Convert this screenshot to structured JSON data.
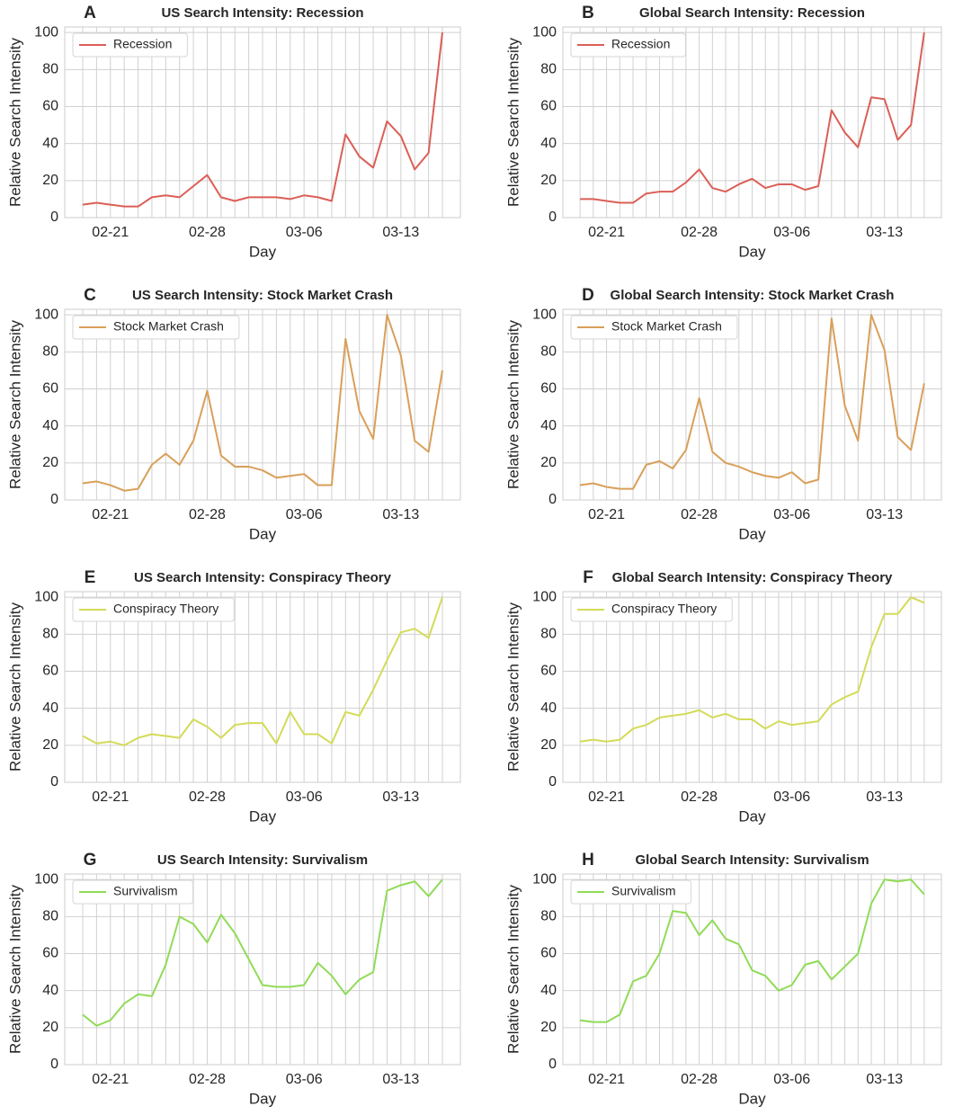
{
  "chart_data": [
    {
      "type": "line",
      "panel": "A",
      "title": "US Search Intensity: Recession",
      "xlabel": "Day",
      "ylabel": "Relative Search Intensity",
      "categories": [
        null,
        null,
        "02-21",
        null,
        null,
        null,
        null,
        null,
        null,
        "02-28",
        null,
        null,
        null,
        null,
        null,
        null,
        "03-06",
        null,
        null,
        null,
        null,
        null,
        null,
        "03-13",
        null,
        null,
        null
      ],
      "series": [
        {
          "name": "Recession",
          "color": "#db5f57",
          "values": [
            7,
            8,
            7,
            6,
            6,
            11,
            12,
            11,
            17,
            23,
            11,
            9,
            11,
            11,
            11,
            10,
            12,
            11,
            9,
            45,
            33,
            27,
            52,
            44,
            26,
            35,
            100
          ]
        }
      ],
      "ylim": [
        0,
        103
      ],
      "yticks": [
        0,
        20,
        40,
        60,
        80,
        100
      ],
      "grid": true,
      "legend": "upper left"
    },
    {
      "type": "line",
      "panel": "B",
      "title": "Global Search Intensity: Recession",
      "xlabel": "Day",
      "ylabel": "Relative Search Intensity",
      "categories": [
        null,
        null,
        "02-21",
        null,
        null,
        null,
        null,
        null,
        null,
        "02-28",
        null,
        null,
        null,
        null,
        null,
        null,
        "03-06",
        null,
        null,
        null,
        null,
        null,
        null,
        "03-13",
        null,
        null,
        null
      ],
      "series": [
        {
          "name": "Recession",
          "color": "#db5f57",
          "values": [
            10,
            10,
            9,
            8,
            8,
            13,
            14,
            14,
            19,
            26,
            16,
            14,
            18,
            21,
            16,
            18,
            18,
            15,
            17,
            58,
            46,
            38,
            65,
            64,
            42,
            50,
            100
          ]
        }
      ],
      "ylim": [
        0,
        103
      ],
      "yticks": [
        0,
        20,
        40,
        60,
        80,
        100
      ],
      "grid": true,
      "legend": "upper left"
    },
    {
      "type": "line",
      "panel": "C",
      "title": "US Search Intensity: Stock Market Crash",
      "xlabel": "Day",
      "ylabel": "Relative Search Intensity",
      "categories": [
        null,
        null,
        "02-21",
        null,
        null,
        null,
        null,
        null,
        null,
        "02-28",
        null,
        null,
        null,
        null,
        null,
        null,
        "03-06",
        null,
        null,
        null,
        null,
        null,
        null,
        "03-13",
        null,
        null,
        null
      ],
      "series": [
        {
          "name": "Stock Market Crash",
          "color": "#d99f5a",
          "values": [
            9,
            10,
            8,
            5,
            6,
            19,
            25,
            19,
            32,
            59,
            24,
            18,
            18,
            16,
            12,
            13,
            14,
            8,
            8,
            87,
            48,
            33,
            100,
            78,
            32,
            26,
            70
          ]
        }
      ],
      "ylim": [
        0,
        103
      ],
      "yticks": [
        0,
        20,
        40,
        60,
        80,
        100
      ],
      "grid": true,
      "legend": "upper left"
    },
    {
      "type": "line",
      "panel": "D",
      "title": "Global Search Intensity: Stock Market Crash",
      "xlabel": "Day",
      "ylabel": "Relative Search Intensity",
      "categories": [
        null,
        null,
        "02-21",
        null,
        null,
        null,
        null,
        null,
        null,
        "02-28",
        null,
        null,
        null,
        null,
        null,
        null,
        "03-06",
        null,
        null,
        null,
        null,
        null,
        null,
        "03-13",
        null,
        null,
        null
      ],
      "series": [
        {
          "name": "Stock Market Crash",
          "color": "#d99f5a",
          "values": [
            8,
            9,
            7,
            6,
            6,
            19,
            21,
            17,
            27,
            55,
            26,
            20,
            18,
            15,
            13,
            12,
            15,
            9,
            11,
            98,
            51,
            32,
            100,
            81,
            34,
            27,
            63
          ]
        }
      ],
      "ylim": [
        0,
        103
      ],
      "yticks": [
        0,
        20,
        40,
        60,
        80,
        100
      ],
      "grid": true,
      "legend": "upper left"
    },
    {
      "type": "line",
      "panel": "E",
      "title": "US Search Intensity: Conspiracy Theory",
      "xlabel": "Day",
      "ylabel": "Relative Search Intensity",
      "categories": [
        null,
        null,
        "02-21",
        null,
        null,
        null,
        null,
        null,
        null,
        "02-28",
        null,
        null,
        null,
        null,
        null,
        null,
        "03-06",
        null,
        null,
        null,
        null,
        null,
        null,
        "03-13",
        null,
        null,
        null
      ],
      "series": [
        {
          "name": "Conspiracy Theory",
          "color": "#d3db57",
          "values": [
            25,
            21,
            22,
            20,
            24,
            26,
            25,
            24,
            34,
            30,
            24,
            31,
            32,
            32,
            21,
            38,
            26,
            26,
            21,
            38,
            36,
            50,
            66,
            81,
            83,
            78,
            100
          ]
        }
      ],
      "ylim": [
        0,
        103
      ],
      "yticks": [
        0,
        20,
        40,
        60,
        80,
        100
      ],
      "grid": true,
      "legend": "upper left"
    },
    {
      "type": "line",
      "panel": "F",
      "title": "Global Search Intensity: Conspiracy Theory",
      "xlabel": "Day",
      "ylabel": "Relative Search Intensity",
      "categories": [
        null,
        null,
        "02-21",
        null,
        null,
        null,
        null,
        null,
        null,
        "02-28",
        null,
        null,
        null,
        null,
        null,
        null,
        "03-06",
        null,
        null,
        null,
        null,
        null,
        null,
        "03-13",
        null,
        null,
        null
      ],
      "series": [
        {
          "name": "Conspiracy Theory",
          "color": "#d3db57",
          "values": [
            22,
            23,
            22,
            23,
            29,
            31,
            35,
            36,
            37,
            39,
            35,
            37,
            34,
            34,
            29,
            33,
            31,
            32,
            33,
            42,
            46,
            49,
            73,
            91,
            91,
            100,
            97
          ]
        }
      ],
      "ylim": [
        0,
        103
      ],
      "yticks": [
        0,
        20,
        40,
        60,
        80,
        100
      ],
      "grid": true,
      "legend": "upper left"
    },
    {
      "type": "line",
      "panel": "G",
      "title": "US Search Intensity: Survivalism",
      "xlabel": "Day",
      "ylabel": "Relative Search Intensity",
      "categories": [
        null,
        null,
        "02-21",
        null,
        null,
        null,
        null,
        null,
        null,
        "02-28",
        null,
        null,
        null,
        null,
        null,
        null,
        "03-06",
        null,
        null,
        null,
        null,
        null,
        null,
        "03-13",
        null,
        null,
        null
      ],
      "series": [
        {
          "name": "Survivalism",
          "color": "#91db57",
          "values": [
            27,
            21,
            24,
            33,
            38,
            37,
            54,
            80,
            76,
            66,
            81,
            71,
            57,
            43,
            42,
            42,
            43,
            55,
            48,
            38,
            46,
            50,
            94,
            97,
            99,
            91,
            100
          ]
        }
      ],
      "ylim": [
        0,
        103
      ],
      "yticks": [
        0,
        20,
        40,
        60,
        80,
        100
      ],
      "grid": true,
      "legend": "upper left"
    },
    {
      "type": "line",
      "panel": "H",
      "title": "Global Search Intensity: Survivalism",
      "xlabel": "Day",
      "ylabel": "Relative Search Intensity",
      "categories": [
        null,
        null,
        "02-21",
        null,
        null,
        null,
        null,
        null,
        null,
        "02-28",
        null,
        null,
        null,
        null,
        null,
        null,
        "03-06",
        null,
        null,
        null,
        null,
        null,
        null,
        "03-13",
        null,
        null,
        null
      ],
      "series": [
        {
          "name": "Survivalism",
          "color": "#91db57",
          "values": [
            24,
            23,
            23,
            27,
            45,
            48,
            60,
            83,
            82,
            70,
            78,
            68,
            65,
            51,
            48,
            40,
            43,
            54,
            56,
            46,
            53,
            60,
            87,
            100,
            99,
            100,
            92
          ]
        }
      ],
      "ylim": [
        0,
        103
      ],
      "yticks": [
        0,
        20,
        40,
        60,
        80,
        100
      ],
      "grid": true,
      "legend": "upper left"
    }
  ]
}
